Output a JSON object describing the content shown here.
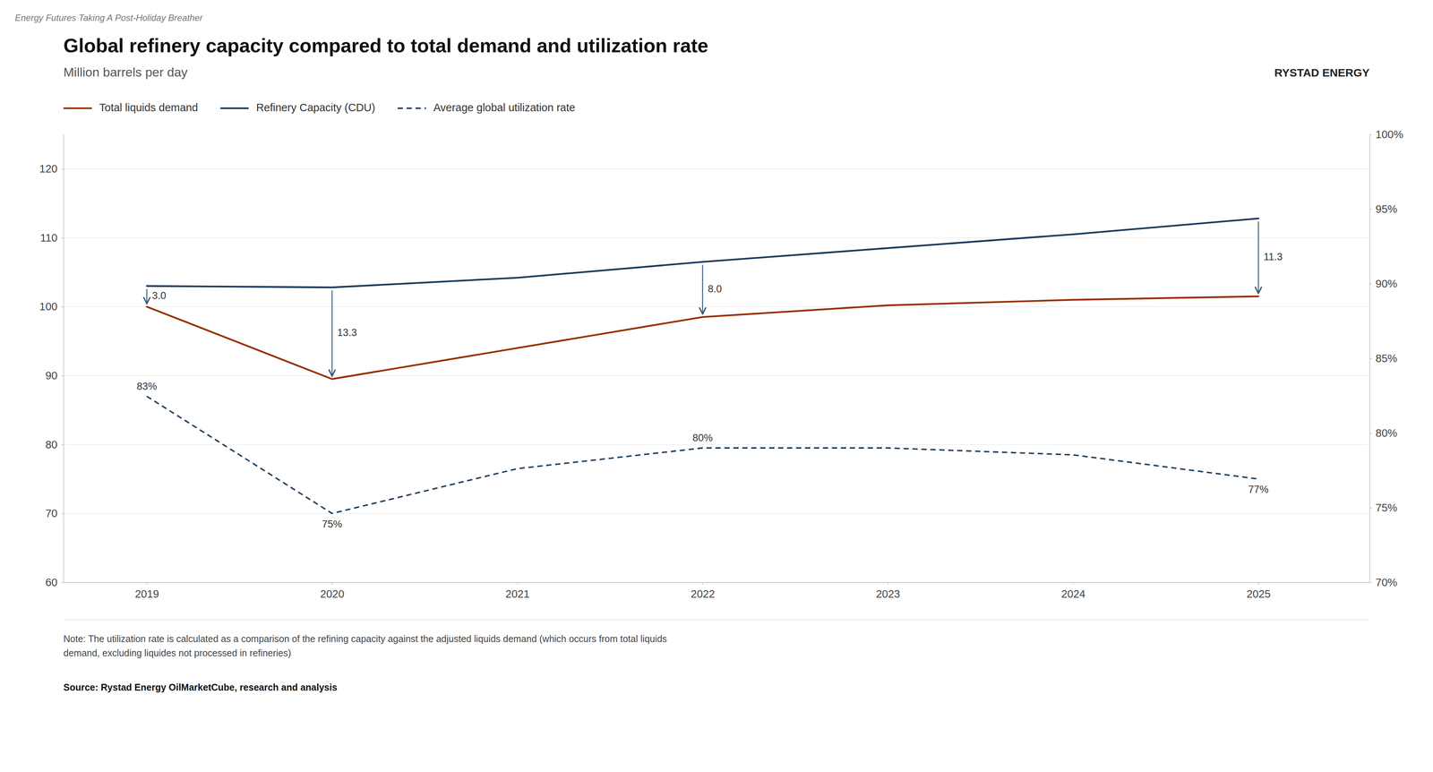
{
  "chart_data": {
    "type": "line",
    "supra_title": "Energy Futures Taking A Post-Holiday Breather",
    "title": "Global refinery capacity compared to total demand and utilization rate",
    "subtitle": "Million barrels per day",
    "brand": "RYSTAD ENERGY",
    "note": "Note: The utilization rate is calculated as a comparison of the refining capacity against the adjusted liquids demand (which occurs from total liquids\ndemand, excluding liquides not processed in refineries)",
    "source": "Source: Rystad Energy OilMarketCube, research and analysis",
    "x": [
      2019,
      2020,
      2021,
      2022,
      2023,
      2024,
      2025
    ],
    "xlim": [
      2018.55,
      2025.6
    ],
    "xticks": [
      2019,
      2020,
      2021,
      2022,
      2023,
      2024,
      2025
    ],
    "ylim": [
      60,
      125
    ],
    "yticks": [
      60,
      70,
      80,
      90,
      100,
      110,
      120
    ],
    "y2lim": [
      0.7,
      1.0
    ],
    "y2ticks": [
      {
        "value": 0.7,
        "label": "70%"
      },
      {
        "value": 0.75,
        "label": "75%"
      },
      {
        "value": 0.8,
        "label": "80%"
      },
      {
        "value": 0.85,
        "label": "85%"
      },
      {
        "value": 0.9,
        "label": "90%"
      },
      {
        "value": 0.95,
        "label": "95%"
      },
      {
        "value": 1.0,
        "label": "100%"
      }
    ],
    "grid": true,
    "legend": "top-left",
    "series": [
      {
        "name": "Total liquids demand",
        "color": "#9B2E00",
        "line_style": "solid",
        "values": [
          100.0,
          89.5,
          94.0,
          98.5,
          100.2,
          101.0,
          101.5
        ]
      },
      {
        "name": "Refinery Capacity (CDU)",
        "color": "#1C3D5C",
        "line_style": "solid",
        "values": [
          103.0,
          102.8,
          104.2,
          106.5,
          108.5,
          110.5,
          112.8
        ]
      },
      {
        "name": "Average global utilization rate",
        "color": "#1C3D5C",
        "line_style": "dashed",
        "values": [
          87.0,
          70.0,
          76.5,
          79.5,
          79.5,
          78.5,
          75.0
        ],
        "annotations": [
          {
            "x": 2019,
            "text": "83%"
          },
          {
            "x": 2020,
            "text": "75%"
          },
          {
            "x": 2022,
            "text": "80%"
          },
          {
            "x": 2025,
            "text": "77%"
          }
        ]
      }
    ],
    "gap_annotations": [
      {
        "x": 2019,
        "text": "3.0"
      },
      {
        "x": 2020,
        "text": "13.3"
      },
      {
        "x": 2022,
        "text": "8.0"
      },
      {
        "x": 2025,
        "text": "11.3"
      }
    ]
  }
}
